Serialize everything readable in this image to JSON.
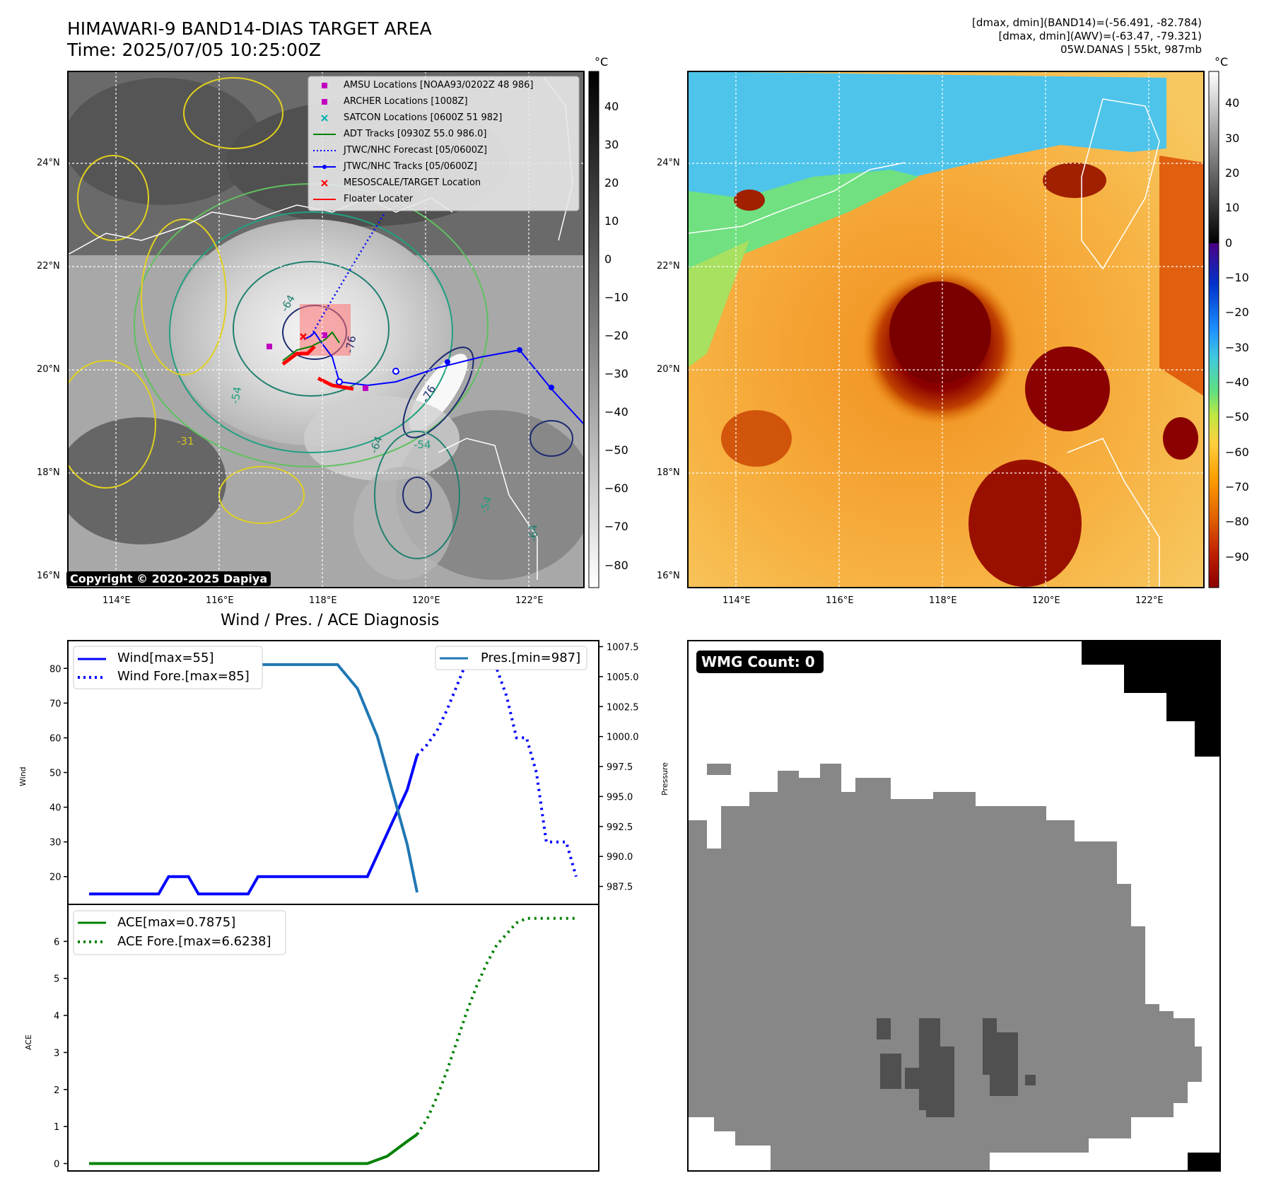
{
  "header": {
    "title_line1": "HIMAWARI-9 BAND14-DIAS TARGET AREA",
    "title_line2": "Time: 2025/07/05 10:25:00Z",
    "info_line1": "[dmax, dmin](BAND14)=(-56.491, -82.784)",
    "info_line2": "[dmax, dmin](AWV)=(-63.47, -79.321)",
    "info_line3": "05W.DANAS | 55kt, 987mb"
  },
  "map_common": {
    "lat_labels": [
      "24°N",
      "22°N",
      "20°N",
      "18°N",
      "16°N"
    ],
    "lon_labels": [
      "114°E",
      "116°E",
      "118°E",
      "120°E",
      "122°E"
    ],
    "colorbar_unit": "°C"
  },
  "map_left": {
    "colorbar_ticks": [
      "40",
      "30",
      "20",
      "10",
      "0",
      "−10",
      "−20",
      "−30",
      "−40",
      "−50",
      "−60",
      "−70",
      "−80"
    ],
    "copyright": "Copyright © 2020-2025 Dapiya",
    "legend": [
      {
        "label": "AMSU Locations [NOAA93/0202Z 48 986]",
        "color": "#c000c0",
        "icon": "square-marker"
      },
      {
        "label": "ARCHER Locations [1008Z]",
        "color": "#c000c0",
        "icon": "square-marker"
      },
      {
        "label": "SATCON Locations [0600Z 51 982]",
        "color": "#00b0b0",
        "icon": "x-marker"
      },
      {
        "label": "ADT Tracks [0930Z 55.0 986.0]",
        "color": "#008000",
        "icon": "line"
      },
      {
        "label": "JTWC/NHC Forecast [05/0600Z]",
        "color": "#0000ff",
        "icon": "dotted-line"
      },
      {
        "label": "JTWC/NHC Tracks [05/0600Z]",
        "color": "#0000ff",
        "icon": "line-dot"
      },
      {
        "label": "MESOSCALE/TARGET Location",
        "color": "#ff0000",
        "icon": "x-marker"
      },
      {
        "label": "Floater Locater",
        "color": "#ff0000",
        "icon": "line"
      }
    ],
    "contour_labels": [
      "-64",
      "-76",
      "-76",
      "-54",
      "-31",
      "-64",
      "-54",
      "-64",
      "-54"
    ]
  },
  "map_right": {
    "colorbar_ticks": [
      "40",
      "30",
      "20",
      "10",
      "0",
      "−10",
      "−20",
      "−30",
      "−40",
      "−50",
      "−60",
      "−70",
      "−80",
      "−90"
    ]
  },
  "diagnosis": {
    "title": "Wind / Pres. / ACE Diagnosis",
    "wind_ylabel": "Wind",
    "pres_ylabel": "Pressure",
    "ace_ylabel": "ACE",
    "legend_wind": "Wind[max=55]",
    "legend_wind_fore": "Wind Fore.[max=85]",
    "legend_pres": "Pres.[min=987]",
    "legend_ace": "ACE[max=0.7875]",
    "legend_ace_fore": "ACE Fore.[max=6.6238]"
  },
  "wmg": {
    "label": "WMG Count: 0"
  },
  "chart_data": [
    {
      "type": "line",
      "name": "Wind / Pres. / ACE Diagnosis (upper)",
      "title": "Wind / Pres. / ACE Diagnosis",
      "ylabel": "Wind",
      "ylim": [
        12,
        88
      ],
      "yticks": [
        20,
        30,
        40,
        50,
        60,
        70,
        80
      ],
      "y2label": "Pressure",
      "y2lim": [
        986,
        1008
      ],
      "y2ticks": [
        987.5,
        990.0,
        992.5,
        995.0,
        997.5,
        1000.0,
        1002.5,
        1005.0,
        1007.5
      ],
      "series": [
        {
          "name": "Wind[max=55]",
          "color": "#0000ff",
          "style": "solid",
          "axis": "left",
          "x": [
            0,
            7,
            8,
            10,
            11,
            16,
            17,
            23,
            24,
            28,
            32,
            33
          ],
          "values": [
            15,
            15,
            20,
            20,
            15,
            15,
            20,
            20,
            20,
            20,
            45,
            55
          ]
        },
        {
          "name": "Wind Fore.[max=85]",
          "color": "#0000ff",
          "style": "dotted",
          "axis": "left",
          "x": [
            33,
            34,
            35,
            36,
            37,
            38,
            39,
            40,
            41,
            42,
            43,
            44,
            45,
            46,
            47,
            48,
            49
          ],
          "values": [
            55,
            58,
            62,
            68,
            75,
            82,
            85,
            85,
            80,
            72,
            60,
            60,
            50,
            30,
            30,
            30,
            20
          ]
        },
        {
          "name": "Pres.[min=987]",
          "color": "#1f77b4",
          "style": "solid",
          "axis": "right",
          "x": [
            0,
            1,
            2,
            3,
            4,
            5,
            6,
            7,
            8,
            9,
            10,
            11,
            12,
            13,
            14,
            15,
            16,
            17,
            18,
            19,
            20,
            21,
            22,
            23,
            24,
            25,
            26,
            27,
            28,
            29,
            30,
            31,
            32,
            33
          ],
          "values": [
            1007,
            1007,
            1007,
            1007,
            1007,
            1006,
            1006,
            1006,
            1006,
            1006,
            1006,
            1006,
            1006,
            1006,
            1006,
            1006,
            1006,
            1006,
            1006,
            1006,
            1006,
            1006,
            1006,
            1006,
            1006,
            1006,
            1005,
            1004,
            1002,
            1000,
            997,
            994,
            991,
            987
          ]
        }
      ]
    },
    {
      "type": "line",
      "name": "ACE (lower)",
      "ylabel": "ACE",
      "ylim": [
        -0.2,
        7.0
      ],
      "yticks": [
        0,
        1,
        2,
        3,
        4,
        5,
        6
      ],
      "series": [
        {
          "name": "ACE[max=0.7875]",
          "color": "#008000",
          "style": "solid",
          "x": [
            0,
            28,
            29,
            30,
            31,
            32,
            33
          ],
          "values": [
            0,
            0,
            0.1,
            0.2,
            0.4,
            0.6,
            0.7875
          ]
        },
        {
          "name": "ACE Fore.[max=6.6238]",
          "color": "#008000",
          "style": "dotted",
          "x": [
            33,
            34,
            35,
            36,
            37,
            38,
            39,
            40,
            41,
            42,
            43,
            44,
            45,
            46,
            47,
            48,
            49
          ],
          "values": [
            0.7875,
            1.2,
            1.8,
            2.5,
            3.3,
            4.1,
            4.8,
            5.4,
            5.9,
            6.2,
            6.5,
            6.6238,
            6.6238,
            6.6238,
            6.6238,
            6.6238,
            6.6238
          ]
        }
      ]
    }
  ]
}
